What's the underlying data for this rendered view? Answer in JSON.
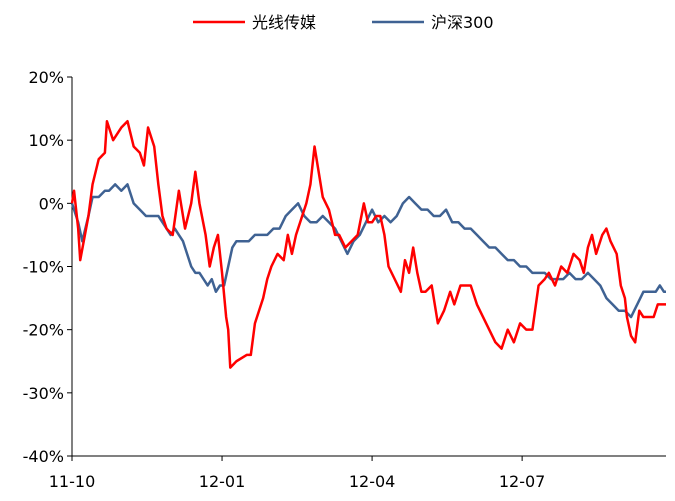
{
  "chart_data": {
    "type": "line",
    "title": "",
    "xlabel": "",
    "ylabel": "",
    "ylim": [
      -0.4,
      0.2
    ],
    "yticks": [
      "20%",
      "10%",
      "0%",
      "-10%",
      "-20%",
      "-30%",
      "-40%"
    ],
    "ytick_values": [
      0.2,
      0.1,
      0.0,
      -0.1,
      -0.2,
      -0.3,
      -0.4
    ],
    "xticks": [
      "11-10",
      "12-01",
      "12-04",
      "12-07"
    ],
    "xtick_index": [
      0,
      73,
      146,
      219
    ],
    "x_count": 290,
    "legend": {
      "position": "top"
    },
    "colors": {
      "光线传媒": "#ff0000",
      "沪深300": "#3f6293"
    },
    "series": [
      {
        "name": "光线传媒",
        "points": [
          [
            0,
            0.0
          ],
          [
            1,
            0.02
          ],
          [
            3,
            -0.04
          ],
          [
            4,
            -0.09
          ],
          [
            8,
            -0.02
          ],
          [
            10,
            0.03
          ],
          [
            13,
            0.07
          ],
          [
            16,
            0.08
          ],
          [
            17,
            0.13
          ],
          [
            20,
            0.1
          ],
          [
            24,
            0.12
          ],
          [
            27,
            0.13
          ],
          [
            30,
            0.09
          ],
          [
            33,
            0.08
          ],
          [
            35,
            0.06
          ],
          [
            37,
            0.12
          ],
          [
            40,
            0.09
          ],
          [
            42,
            0.03
          ],
          [
            44,
            -0.02
          ],
          [
            46,
            -0.04
          ],
          [
            49,
            -0.05
          ],
          [
            52,
            0.02
          ],
          [
            55,
            -0.04
          ],
          [
            58,
            0.0
          ],
          [
            60,
            0.05
          ],
          [
            62,
            0.0
          ],
          [
            65,
            -0.05
          ],
          [
            67,
            -0.1
          ],
          [
            69,
            -0.07
          ],
          [
            71,
            -0.05
          ],
          [
            73,
            -0.11
          ],
          [
            75,
            -0.18
          ],
          [
            76,
            -0.2
          ],
          [
            77,
            -0.26
          ],
          [
            80,
            -0.25
          ],
          [
            85,
            -0.24
          ],
          [
            87,
            -0.24
          ],
          [
            89,
            -0.19
          ],
          [
            91,
            -0.17
          ],
          [
            93,
            -0.15
          ],
          [
            95,
            -0.12
          ],
          [
            97,
            -0.1
          ],
          [
            100,
            -0.08
          ],
          [
            103,
            -0.09
          ],
          [
            105,
            -0.05
          ],
          [
            107,
            -0.08
          ],
          [
            109,
            -0.05
          ],
          [
            111,
            -0.03
          ],
          [
            114,
            0.0
          ],
          [
            116,
            0.03
          ],
          [
            118,
            0.09
          ],
          [
            120,
            0.05
          ],
          [
            122,
            0.01
          ],
          [
            125,
            -0.01
          ],
          [
            128,
            -0.05
          ],
          [
            130,
            -0.05
          ],
          [
            133,
            -0.07
          ],
          [
            136,
            -0.06
          ],
          [
            139,
            -0.05
          ],
          [
            142,
            0.0
          ],
          [
            144,
            -0.03
          ],
          [
            146,
            -0.03
          ],
          [
            148,
            -0.02
          ],
          [
            150,
            -0.02
          ],
          [
            152,
            -0.05
          ],
          [
            154,
            -0.1
          ],
          [
            157,
            -0.12
          ],
          [
            160,
            -0.14
          ],
          [
            162,
            -0.09
          ],
          [
            164,
            -0.11
          ],
          [
            166,
            -0.07
          ],
          [
            168,
            -0.11
          ],
          [
            170,
            -0.14
          ],
          [
            172,
            -0.14
          ],
          [
            175,
            -0.13
          ],
          [
            178,
            -0.19
          ],
          [
            181,
            -0.17
          ],
          [
            184,
            -0.14
          ],
          [
            186,
            -0.16
          ],
          [
            189,
            -0.13
          ],
          [
            192,
            -0.13
          ],
          [
            194,
            -0.13
          ],
          [
            197,
            -0.16
          ],
          [
            200,
            -0.18
          ],
          [
            203,
            -0.2
          ],
          [
            206,
            -0.22
          ],
          [
            209,
            -0.23
          ],
          [
            212,
            -0.2
          ],
          [
            215,
            -0.22
          ],
          [
            218,
            -0.19
          ],
          [
            221,
            -0.2
          ],
          [
            224,
            -0.2
          ],
          [
            227,
            -0.13
          ],
          [
            230,
            -0.12
          ],
          [
            232,
            -0.11
          ],
          [
            235,
            -0.13
          ],
          [
            238,
            -0.1
          ],
          [
            241,
            -0.11
          ],
          [
            244,
            -0.08
          ],
          [
            247,
            -0.09
          ],
          [
            249,
            -0.11
          ],
          [
            251,
            -0.07
          ],
          [
            253,
            -0.05
          ],
          [
            255,
            -0.08
          ],
          [
            258,
            -0.05
          ],
          [
            260,
            -0.04
          ],
          [
            262,
            -0.06
          ],
          [
            265,
            -0.08
          ],
          [
            267,
            -0.13
          ],
          [
            269,
            -0.15
          ],
          [
            270,
            -0.18
          ],
          [
            272,
            -0.21
          ],
          [
            274,
            -0.22
          ],
          [
            276,
            -0.17
          ],
          [
            278,
            -0.18
          ],
          [
            280,
            -0.18
          ],
          [
            283,
            -0.18
          ],
          [
            285,
            -0.16
          ],
          [
            287,
            -0.16
          ],
          [
            289,
            -0.16
          ]
        ]
      },
      {
        "name": "沪深300",
        "points": [
          [
            0,
            0.0
          ],
          [
            3,
            -0.03
          ],
          [
            5,
            -0.06
          ],
          [
            8,
            -0.02
          ],
          [
            10,
            0.01
          ],
          [
            13,
            0.01
          ],
          [
            16,
            0.02
          ],
          [
            18,
            0.02
          ],
          [
            21,
            0.03
          ],
          [
            24,
            0.02
          ],
          [
            27,
            0.03
          ],
          [
            30,
            0.0
          ],
          [
            33,
            -0.01
          ],
          [
            36,
            -0.02
          ],
          [
            39,
            -0.02
          ],
          [
            42,
            -0.02
          ],
          [
            44,
            -0.03
          ],
          [
            46,
            -0.04
          ],
          [
            48,
            -0.05
          ],
          [
            50,
            -0.04
          ],
          [
            52,
            -0.05
          ],
          [
            54,
            -0.06
          ],
          [
            56,
            -0.08
          ],
          [
            58,
            -0.1
          ],
          [
            60,
            -0.11
          ],
          [
            62,
            -0.11
          ],
          [
            64,
            -0.12
          ],
          [
            66,
            -0.13
          ],
          [
            68,
            -0.12
          ],
          [
            70,
            -0.14
          ],
          [
            72,
            -0.13
          ],
          [
            74,
            -0.13
          ],
          [
            76,
            -0.1
          ],
          [
            78,
            -0.07
          ],
          [
            80,
            -0.06
          ],
          [
            83,
            -0.06
          ],
          [
            86,
            -0.06
          ],
          [
            89,
            -0.05
          ],
          [
            92,
            -0.05
          ],
          [
            95,
            -0.05
          ],
          [
            98,
            -0.04
          ],
          [
            101,
            -0.04
          ],
          [
            104,
            -0.02
          ],
          [
            107,
            -0.01
          ],
          [
            110,
            0.0
          ],
          [
            113,
            -0.02
          ],
          [
            116,
            -0.03
          ],
          [
            119,
            -0.03
          ],
          [
            122,
            -0.02
          ],
          [
            125,
            -0.03
          ],
          [
            128,
            -0.04
          ],
          [
            131,
            -0.06
          ],
          [
            134,
            -0.08
          ],
          [
            137,
            -0.06
          ],
          [
            140,
            -0.05
          ],
          [
            143,
            -0.03
          ],
          [
            146,
            -0.01
          ],
          [
            149,
            -0.03
          ],
          [
            152,
            -0.02
          ],
          [
            155,
            -0.03
          ],
          [
            158,
            -0.02
          ],
          [
            161,
            0.0
          ],
          [
            164,
            0.01
          ],
          [
            167,
            0.0
          ],
          [
            170,
            -0.01
          ],
          [
            173,
            -0.01
          ],
          [
            176,
            -0.02
          ],
          [
            179,
            -0.02
          ],
          [
            182,
            -0.01
          ],
          [
            185,
            -0.03
          ],
          [
            188,
            -0.03
          ],
          [
            191,
            -0.04
          ],
          [
            194,
            -0.04
          ],
          [
            197,
            -0.05
          ],
          [
            200,
            -0.06
          ],
          [
            203,
            -0.07
          ],
          [
            206,
            -0.07
          ],
          [
            209,
            -0.08
          ],
          [
            212,
            -0.09
          ],
          [
            215,
            -0.09
          ],
          [
            218,
            -0.1
          ],
          [
            221,
            -0.1
          ],
          [
            224,
            -0.11
          ],
          [
            227,
            -0.11
          ],
          [
            230,
            -0.11
          ],
          [
            233,
            -0.12
          ],
          [
            236,
            -0.12
          ],
          [
            239,
            -0.12
          ],
          [
            242,
            -0.11
          ],
          [
            245,
            -0.12
          ],
          [
            248,
            -0.12
          ],
          [
            251,
            -0.11
          ],
          [
            254,
            -0.12
          ],
          [
            257,
            -0.13
          ],
          [
            260,
            -0.15
          ],
          [
            263,
            -0.16
          ],
          [
            266,
            -0.17
          ],
          [
            269,
            -0.17
          ],
          [
            272,
            -0.18
          ],
          [
            275,
            -0.16
          ],
          [
            278,
            -0.14
          ],
          [
            281,
            -0.14
          ],
          [
            284,
            -0.14
          ],
          [
            286,
            -0.13
          ],
          [
            288,
            -0.14
          ],
          [
            289,
            -0.14
          ]
        ]
      }
    ]
  }
}
